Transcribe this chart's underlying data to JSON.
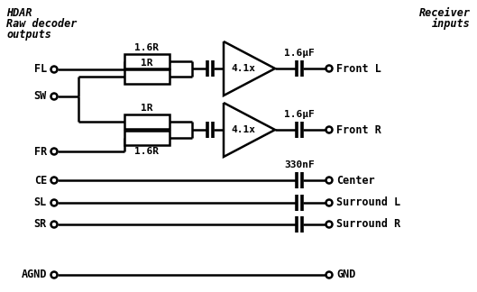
{
  "bg_color": "#ffffff",
  "line_color": "#000000",
  "figsize": [
    5.29,
    3.24
  ],
  "dpi": 100,
  "cap_label_amp": "1.6μF",
  "cap_label_simple": "330nF",
  "amp_label": "4.1x"
}
